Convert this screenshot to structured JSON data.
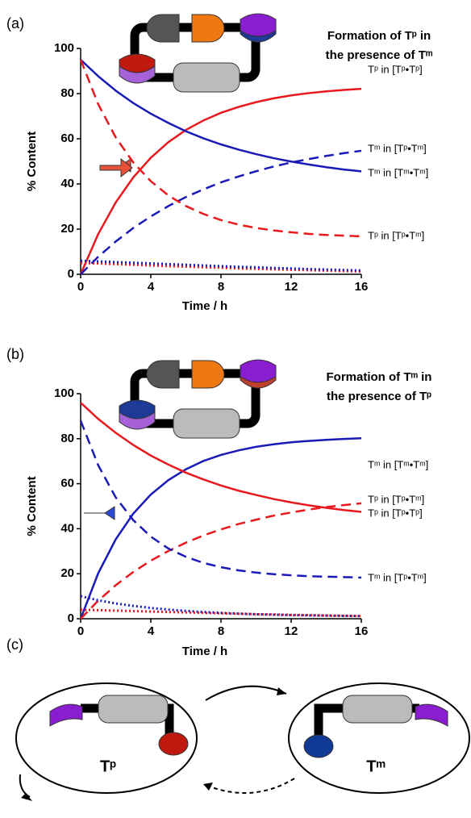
{
  "chart_data": [
    {
      "type": "line",
      "panel_label": "(a)",
      "title": [
        "Formation of Tᵖ in",
        "the presence of Tᵐ"
      ],
      "x_label": "Time / h",
      "y_label": "% Content",
      "x": [
        0,
        1,
        2,
        3,
        4,
        5,
        6,
        7,
        8,
        9,
        10,
        11,
        12,
        13,
        14,
        15,
        16
      ],
      "xlim": [
        0,
        16
      ],
      "xticks": [
        0,
        4,
        8,
        12,
        16
      ],
      "ylim": [
        0,
        100
      ],
      "yticks": [
        0,
        20,
        40,
        60,
        80,
        100
      ],
      "series": [
        {
          "name": "Tᵖ in [Tᵖ•Tᵖ]",
          "color": "#e8191e",
          "dash": "solid",
          "values": [
            0,
            17.8,
            31.8,
            42.9,
            51.6,
            58.5,
            63.9,
            68.1,
            71.5,
            74.1,
            76.2,
            77.9,
            79.2,
            80.2,
            81.0,
            81.6,
            82.1
          ]
        },
        {
          "name": "Tᵐ in [Tᵖ•Tᵐ]",
          "color": "#1a1ab8",
          "dash": "dashed",
          "values": [
            0,
            7.75,
            14.5,
            20.5,
            25.6,
            30.2,
            34.2,
            37.6,
            40.7,
            43.3,
            45.6,
            47.7,
            49.5,
            51.0,
            52.4,
            53.6,
            54.7
          ]
        },
        {
          "name": "Tᵐ in [Tᵐ•Tᵐ]",
          "color": "#1a1ab8",
          "dash": "solid",
          "values": [
            95,
            87.7,
            81.3,
            75.8,
            71.1,
            67.0,
            63.3,
            60.2,
            57.5,
            55.2,
            53.2,
            51.4,
            49.9,
            48.6,
            47.4,
            46.4,
            45.6
          ]
        },
        {
          "name": "Tᵖ in [Tᵖ•Tᵐ]",
          "color": "#e8191e",
          "dash": "dashed",
          "values": [
            95,
            75.3,
            60.6,
            49.5,
            41.2,
            34.9,
            30.2,
            26.7,
            24.0,
            22.0,
            20.5,
            19.4,
            18.6,
            17.9,
            17.4,
            17.1,
            16.8
          ]
        },
        {
          "color": "#e8191e",
          "dash": "dotted",
          "values": [
            5,
            4.8,
            4.5,
            4.2,
            3.9,
            3.6,
            3.4,
            3.1,
            2.9,
            2.6,
            2.4,
            2.2,
            2.0,
            1.8,
            1.6,
            1.4,
            1.2
          ]
        },
        {
          "color": "#1a1ab8",
          "dash": "dotted",
          "values": [
            6,
            5.7,
            5.4,
            5.1,
            4.8,
            4.5,
            4.2,
            3.9,
            3.6,
            3.3,
            3.1,
            2.8,
            2.6,
            2.3,
            2.1,
            1.9,
            1.7
          ]
        }
      ]
    },
    {
      "type": "line",
      "panel_label": "(b)",
      "title": [
        "Formation of Tᵐ in",
        "the presence of Tᵖ"
      ],
      "x_label": "Time / h",
      "y_label": "% Content",
      "x": [
        0,
        1,
        2,
        3,
        4,
        5,
        6,
        7,
        8,
        9,
        10,
        11,
        12,
        13,
        14,
        15,
        16
      ],
      "xlim": [
        0,
        16
      ],
      "xticks": [
        0,
        4,
        8,
        12,
        16
      ],
      "ylim": [
        0,
        100
      ],
      "yticks": [
        0,
        20,
        40,
        60,
        80,
        100
      ],
      "series": [
        {
          "name": "Tᵐ in [Tᵐ•Tᵐ]",
          "color": "#1a1ab8",
          "dash": "solid",
          "values": [
            0,
            20.2,
            35.3,
            46.7,
            55.2,
            61.6,
            66.4,
            70.1,
            72.8,
            74.8,
            76.4,
            77.5,
            78.4,
            79.0,
            79.5,
            79.9,
            80.2
          ]
        },
        {
          "name": "Tᵖ in [Tᵖ•Tᵐ]",
          "color": "#e8191e",
          "dash": "dashed",
          "values": [
            0,
            8.0,
            14.9,
            20.8,
            25.8,
            30.1,
            33.8,
            37.0,
            39.7,
            42.1,
            44.0,
            45.8,
            47.2,
            48.5,
            49.6,
            50.5,
            51.3
          ]
        },
        {
          "name": "Tᵖ in [Tᵖ•Tᵖ]",
          "color": "#e8191e",
          "dash": "solid",
          "values": [
            96,
            88.8,
            82.6,
            77.2,
            72.5,
            68.5,
            64.9,
            61.9,
            59.2,
            56.9,
            55.0,
            53.2,
            51.7,
            50.4,
            49.3,
            48.3,
            47.5
          ]
        },
        {
          "name": "Tᵐ in [Tᵖ•Tᵐ]",
          "color": "#1a1ab8",
          "dash": "dashed",
          "values": [
            88,
            68.2,
            53.9,
            43.8,
            36.5,
            31.2,
            27.5,
            24.8,
            22.9,
            21.5,
            20.5,
            19.8,
            19.3,
            18.9,
            18.7,
            18.5,
            18.3
          ]
        },
        {
          "color": "#1a1ab8",
          "dash": "dotted",
          "values": [
            10,
            8.2,
            6.8,
            5.7,
            4.8,
            4.1,
            3.5,
            3.0,
            2.6,
            2.3,
            2.0,
            1.8,
            1.6,
            1.5,
            1.4,
            1.3,
            1.2
          ]
        },
        {
          "color": "#e8191e",
          "dash": "dotted",
          "values": [
            4,
            3.8,
            3.6,
            3.4,
            3.2,
            3.0,
            2.8,
            2.6,
            2.4,
            2.2,
            2.0,
            1.9,
            1.7,
            1.6,
            1.4,
            1.3,
            1.2
          ]
        }
      ]
    }
  ],
  "panel_c": {
    "label": "(c)",
    "left": "Tᵖ",
    "right": "Tᵐ"
  }
}
